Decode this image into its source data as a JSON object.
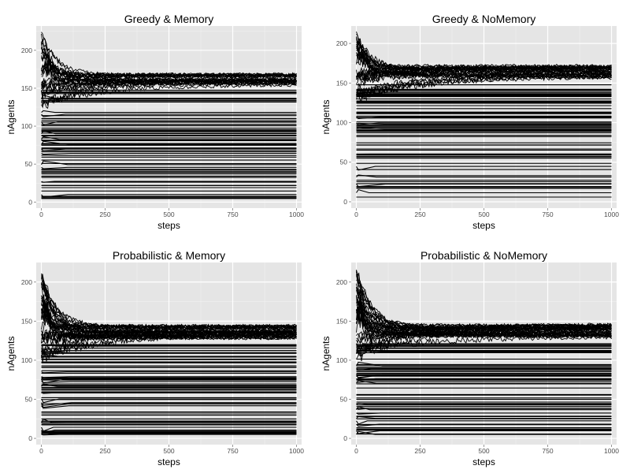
{
  "figure": {
    "colors": {
      "background": "#ffffff",
      "panel": "#e5e5e5",
      "grid_major": "#ffffff",
      "grid_minor": "#f2f2f2",
      "line": "#000000",
      "tick_text": "#4d4d4d"
    }
  },
  "chart_data": [
    {
      "type": "line",
      "title": "Greedy & Memory",
      "xlabel": "steps",
      "ylabel": "nAgents",
      "xlim": [
        -20,
        1020
      ],
      "ylim": [
        -8,
        232
      ],
      "xticks": [
        0,
        250,
        500,
        750,
        1000
      ],
      "yticks": [
        0,
        50,
        100,
        150,
        200
      ],
      "grid": true,
      "converged_level": 162,
      "series_summary": {
        "peak_near_step": 25,
        "peak_max": 222,
        "converging_series_count": 30,
        "flat_series_count": 75
      }
    },
    {
      "type": "line",
      "title": "Greedy & NoMemory",
      "xlabel": "steps",
      "ylabel": "nAgents",
      "xlim": [
        -20,
        1020
      ],
      "ylim": [
        -8,
        222
      ],
      "xticks": [
        0,
        250,
        500,
        750,
        1000
      ],
      "yticks": [
        0,
        50,
        100,
        150,
        200
      ],
      "grid": true,
      "converged_level": 164,
      "series_summary": {
        "peak_near_step": 30,
        "peak_max": 214,
        "converging_series_count": 32,
        "flat_series_count": 75
      }
    },
    {
      "type": "line",
      "title": "Probabilistic & Memory",
      "xlabel": "steps",
      "ylabel": "nAgents",
      "xlim": [
        -20,
        1020
      ],
      "ylim": [
        -8,
        225
      ],
      "xticks": [
        0,
        250,
        500,
        750,
        1000
      ],
      "yticks": [
        0,
        50,
        100,
        150,
        200
      ],
      "grid": true,
      "converged_level": 136,
      "series_summary": {
        "peak_near_step": 15,
        "peak_max": 216,
        "converging_series_count": 40,
        "flat_series_count": 70
      }
    },
    {
      "type": "line",
      "title": "Probabilistic & NoMemory",
      "xlabel": "steps",
      "ylabel": "nAgents",
      "xlim": [
        -20,
        1020
      ],
      "ylim": [
        -8,
        225
      ],
      "xticks": [
        0,
        250,
        500,
        750,
        1000
      ],
      "yticks": [
        0,
        50,
        100,
        150,
        200
      ],
      "grid": true,
      "converged_level": 138,
      "series_summary": {
        "peak_near_step": 15,
        "peak_max": 218,
        "converging_series_count": 40,
        "flat_series_count": 70
      }
    }
  ]
}
